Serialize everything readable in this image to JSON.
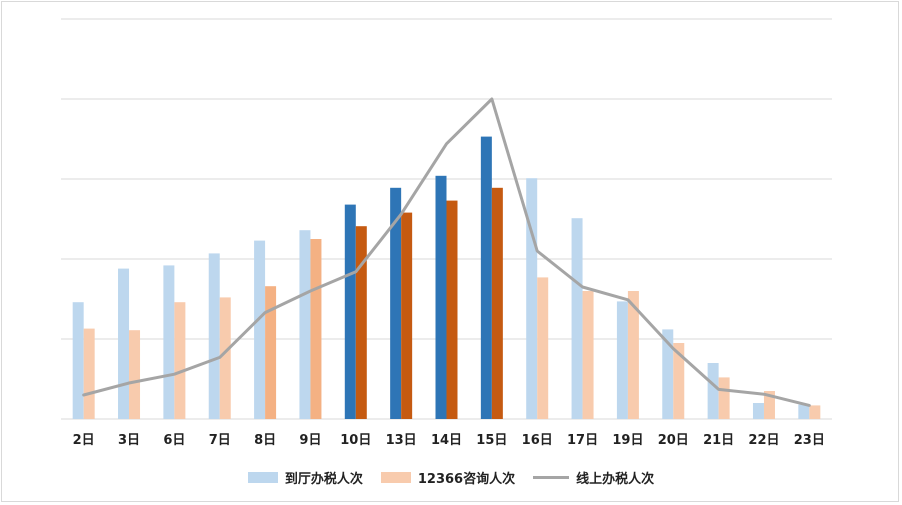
{
  "chart_data": {
    "type": "bar",
    "categories": [
      "2日",
      "3日",
      "6日",
      "7日",
      "8日",
      "9日",
      "10日",
      "13日",
      "14日",
      "15日",
      "16日",
      "17日",
      "19日",
      "20日",
      "21日",
      "22日",
      "23日"
    ],
    "series": [
      {
        "name": "到厅办税人次",
        "type": "bar",
        "values": [
          146,
          188,
          192,
          207,
          223,
          236,
          268,
          289,
          304,
          353,
          301,
          251,
          147,
          112,
          70,
          20,
          18
        ],
        "color": "#bdd7ee",
        "highlight_color": "#2e75b6",
        "highlight_indices": [
          6,
          7,
          8,
          9
        ]
      },
      {
        "name": "12366咨询人次",
        "type": "bar",
        "values": [
          113,
          111,
          146,
          152,
          166,
          225,
          241,
          258,
          273,
          289,
          177,
          160,
          160,
          95,
          52,
          35,
          17
        ],
        "color": "#f8cbad",
        "alt_color": "#f4b183",
        "alt_indices": [
          4,
          5
        ],
        "highlight_color": "#c55a11",
        "highlight_indices": [
          6,
          7,
          8,
          9
        ]
      },
      {
        "name": "线上办税人次",
        "type": "line",
        "values": [
          30,
          45,
          56,
          77,
          133,
          160,
          184,
          256,
          344,
          400,
          210,
          165,
          149,
          88,
          37,
          31,
          17
        ],
        "color": "#a5a5a5"
      }
    ],
    "ylim": [
      0,
      500
    ],
    "grid": true,
    "y_ticks_shown": false,
    "legend_position": "bottom"
  }
}
